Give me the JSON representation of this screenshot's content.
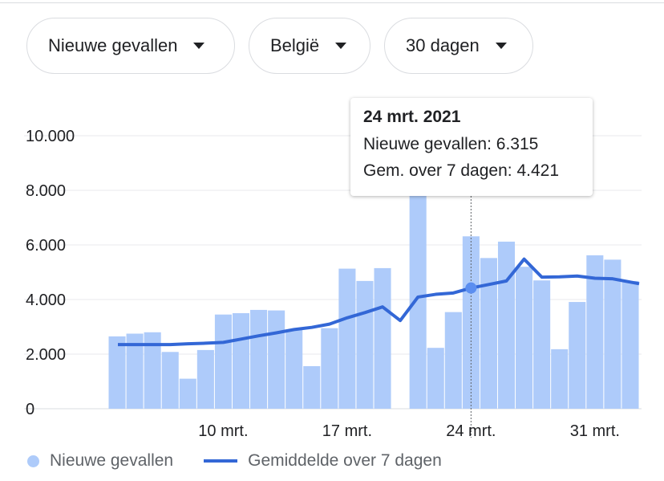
{
  "filters": {
    "metric": "Nieuwe gevallen",
    "country": "België",
    "period": "30 dagen"
  },
  "tooltip": {
    "date": "24 mrt. 2021",
    "new_cases_line": "Nieuwe gevallen: 6.315",
    "avg_line": "Gem. over 7 dagen: 4.421"
  },
  "legend": {
    "bars": "Nieuwe gevallen",
    "line": "Gemiddelde over 7 dagen"
  },
  "colors": {
    "bar": "#aecbfa",
    "line": "#3367d6",
    "grid": "#e8eaed",
    "axis_text": "#5f6368"
  },
  "chart_data": {
    "type": "bar",
    "x": [
      "4 mrt.",
      "5 mrt.",
      "6 mrt.",
      "7 mrt.",
      "8 mrt.",
      "9 mrt.",
      "10 mrt.",
      "11 mrt.",
      "12 mrt.",
      "13 mrt.",
      "14 mrt.",
      "15 mrt.",
      "16 mrt.",
      "17 mrt.",
      "18 mrt.",
      "19 mrt.",
      "20 mrt.",
      "21 mrt.",
      "22 mrt.",
      "23 mrt.",
      "24 mrt.",
      "25 mrt.",
      "26 mrt.",
      "27 mrt.",
      "28 mrt.",
      "29 mrt.",
      "30 mrt.",
      "31 mrt.",
      "1 apr.",
      "2 apr."
    ],
    "x_ticks": [
      "10 mrt.",
      "17 mrt.",
      "24 mrt.",
      "31 mrt."
    ],
    "series": [
      {
        "name": "Nieuwe gevallen",
        "type": "bar",
        "values": [
          2650,
          2750,
          2800,
          2080,
          1100,
          2150,
          3450,
          3500,
          3620,
          3600,
          2900,
          1560,
          2950,
          5130,
          4680,
          5150,
          null,
          7990,
          2230,
          3540,
          6315,
          5520,
          6120,
          5200,
          4700,
          2180,
          3910,
          5620,
          5460,
          4680
        ]
      },
      {
        "name": "Gemiddelde over 7 dagen",
        "type": "line",
        "values": [
          2350,
          2350,
          2350,
          2350,
          2380,
          2400,
          2430,
          2550,
          2670,
          2780,
          2900,
          2980,
          3100,
          3330,
          3520,
          3730,
          3230,
          4090,
          4190,
          4240,
          4421,
          4550,
          4680,
          5480,
          4820,
          4830,
          4860,
          4780,
          4760,
          4580
        ]
      }
    ],
    "yticks": [
      "0",
      "2.000",
      "4.000",
      "6.000",
      "8.000",
      "10.000"
    ],
    "ylim": [
      0,
      10000
    ],
    "highlight_index": 20,
    "grid": true,
    "legend_position": "bottom"
  }
}
